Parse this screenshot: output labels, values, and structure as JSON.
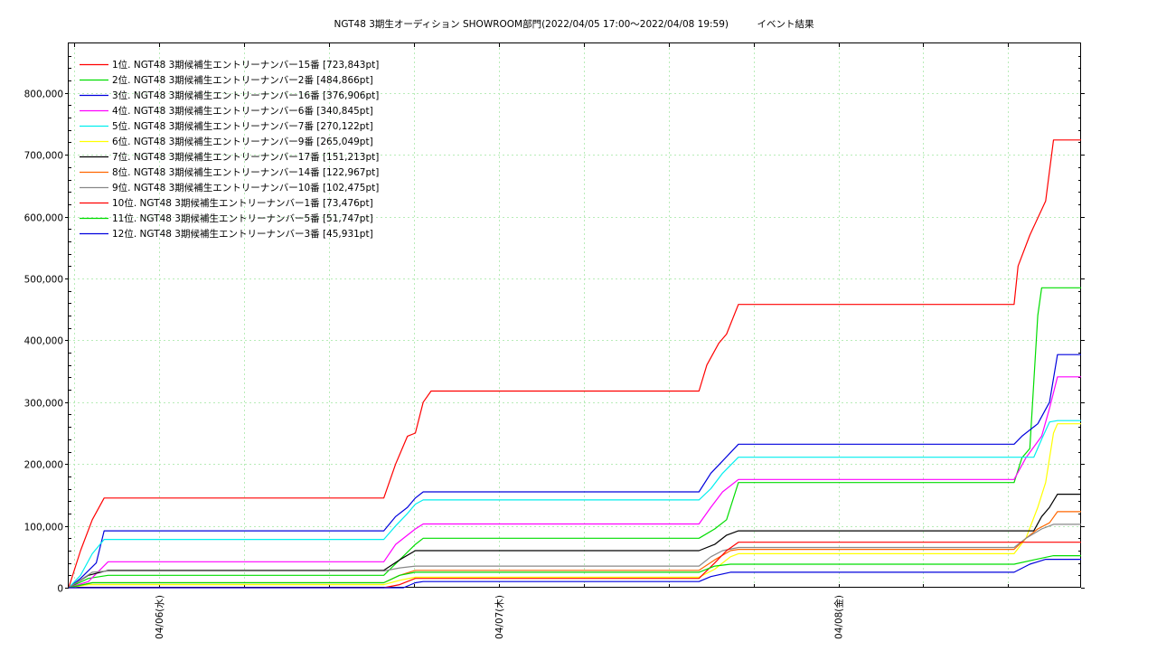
{
  "chart_data": {
    "type": "line",
    "title": "NGT48 3期生オーディション SHOWROOM部門(2022/04/05 17:00～2022/04/08 19:59)　　　イベント結果",
    "x_tick_labels": [
      "04/06(水)",
      "04/07(木)",
      "04/08(金)"
    ],
    "x_range": [
      "2022/04/05 17:00",
      "2022/04/08 19:59"
    ],
    "ylim": [
      0,
      880000
    ],
    "y_ticks": [
      0,
      100000,
      200000,
      300000,
      400000,
      500000,
      600000,
      700000,
      800000
    ],
    "y_tick_labels": [
      "0",
      "100,000",
      "200,000",
      "300,000",
      "400,000",
      "500,000",
      "600,000",
      "700,000",
      "800,000"
    ],
    "grid": true,
    "legend_position": "top-left",
    "series": [
      {
        "name": " 1位. NGT48 3期候補生エントリーナンバー15番 [723,843pt]",
        "color": "#ff0000",
        "points": [
          [
            0,
            0
          ],
          [
            3,
            60000
          ],
          [
            6,
            110000
          ],
          [
            9,
            145000
          ],
          [
            80,
            145000
          ],
          [
            83,
            200000
          ],
          [
            86,
            245000
          ],
          [
            88,
            250000
          ],
          [
            90,
            300000
          ],
          [
            92,
            318000
          ],
          [
            160,
            318000
          ],
          [
            162,
            360000
          ],
          [
            165,
            395000
          ],
          [
            167,
            410000
          ],
          [
            170,
            458000
          ],
          [
            240,
            458000
          ],
          [
            241,
            520000
          ],
          [
            244,
            570000
          ],
          [
            248,
            625000
          ],
          [
            250,
            723843
          ],
          [
            257,
            723843
          ]
        ]
      },
      {
        "name": " 2位. NGT48 3期候補生エントリーナンバー2番 [484,866pt]",
        "color": "#00dd00",
        "points": [
          [
            0,
            0
          ],
          [
            5,
            15000
          ],
          [
            10,
            20000
          ],
          [
            80,
            20000
          ],
          [
            84,
            45000
          ],
          [
            88,
            70000
          ],
          [
            90,
            80000
          ],
          [
            160,
            80000
          ],
          [
            164,
            95000
          ],
          [
            167,
            110000
          ],
          [
            170,
            170000
          ],
          [
            240,
            170000
          ],
          [
            242,
            210000
          ],
          [
            244,
            225000
          ],
          [
            246,
            440000
          ],
          [
            247,
            484866
          ],
          [
            257,
            484866
          ]
        ]
      },
      {
        "name": " 3位. NGT48 3期候補生エントリーナンバー16番 [376,906pt]",
        "color": "#0000dd",
        "points": [
          [
            0,
            0
          ],
          [
            3,
            15000
          ],
          [
            7,
            40000
          ],
          [
            9,
            92000
          ],
          [
            80,
            92000
          ],
          [
            83,
            115000
          ],
          [
            86,
            130000
          ],
          [
            88,
            145000
          ],
          [
            90,
            155000
          ],
          [
            160,
            155000
          ],
          [
            163,
            185000
          ],
          [
            166,
            205000
          ],
          [
            170,
            232000
          ],
          [
            240,
            232000
          ],
          [
            242,
            245000
          ],
          [
            246,
            265000
          ],
          [
            249,
            300000
          ],
          [
            251,
            376906
          ],
          [
            257,
            376906
          ]
        ]
      },
      {
        "name": " 4位. NGT48 3期候補生エントリーナンバー6番 [340,845pt]",
        "color": "#ff00ff",
        "points": [
          [
            0,
            0
          ],
          [
            5,
            10000
          ],
          [
            10,
            42000
          ],
          [
            80,
            42000
          ],
          [
            83,
            70000
          ],
          [
            88,
            95000
          ],
          [
            90,
            103000
          ],
          [
            160,
            103000
          ],
          [
            163,
            130000
          ],
          [
            166,
            155000
          ],
          [
            170,
            175000
          ],
          [
            240,
            175000
          ],
          [
            243,
            210000
          ],
          [
            247,
            245000
          ],
          [
            249,
            290000
          ],
          [
            251,
            340845
          ],
          [
            257,
            340845
          ]
        ]
      },
      {
        "name": " 5位. NGT48 3期候補生エントリーナンバー7番 [270,122pt]",
        "color": "#00eeee",
        "points": [
          [
            0,
            0
          ],
          [
            3,
            20000
          ],
          [
            6,
            55000
          ],
          [
            9,
            78000
          ],
          [
            80,
            78000
          ],
          [
            83,
            100000
          ],
          [
            86,
            120000
          ],
          [
            88,
            135000
          ],
          [
            90,
            142000
          ],
          [
            160,
            142000
          ],
          [
            163,
            160000
          ],
          [
            166,
            185000
          ],
          [
            170,
            211000
          ],
          [
            240,
            211000
          ],
          [
            245,
            211000
          ],
          [
            247,
            240000
          ],
          [
            249,
            268000
          ],
          [
            251,
            270122
          ],
          [
            257,
            270122
          ]
        ]
      },
      {
        "name": " 6位. NGT48 3期候補生エントリーナンバー9番 [265,049pt]",
        "color": "#ffff00",
        "points": [
          [
            0,
            0
          ],
          [
            5,
            5000
          ],
          [
            80,
            5000
          ],
          [
            84,
            12000
          ],
          [
            88,
            17000
          ],
          [
            160,
            17000
          ],
          [
            164,
            30000
          ],
          [
            168,
            50000
          ],
          [
            170,
            55000
          ],
          [
            240,
            55000
          ],
          [
            243,
            80000
          ],
          [
            246,
            130000
          ],
          [
            248,
            170000
          ],
          [
            250,
            250000
          ],
          [
            251,
            265049
          ],
          [
            257,
            265049
          ]
        ]
      },
      {
        "name": " 7位. NGT48 3期候補生エントリーナンバー17番 [151,213pt]",
        "color": "#000000",
        "points": [
          [
            0,
            0
          ],
          [
            5,
            20000
          ],
          [
            10,
            28000
          ],
          [
            80,
            28000
          ],
          [
            84,
            45000
          ],
          [
            88,
            60000
          ],
          [
            160,
            60000
          ],
          [
            164,
            70000
          ],
          [
            167,
            85000
          ],
          [
            170,
            92000
          ],
          [
            240,
            92000
          ],
          [
            245,
            92000
          ],
          [
            247,
            115000
          ],
          [
            249,
            130000
          ],
          [
            251,
            151213
          ],
          [
            257,
            151213
          ]
        ]
      },
      {
        "name": " 8位. NGT48 3期候補生エントリーナンバー14番 [122,967pt]",
        "color": "#ff6600",
        "points": [
          [
            0,
            0
          ],
          [
            6,
            8000
          ],
          [
            80,
            8000
          ],
          [
            84,
            20000
          ],
          [
            88,
            28000
          ],
          [
            160,
            28000
          ],
          [
            164,
            45000
          ],
          [
            168,
            60000
          ],
          [
            170,
            62000
          ],
          [
            240,
            62000
          ],
          [
            243,
            80000
          ],
          [
            246,
            95000
          ],
          [
            249,
            105000
          ],
          [
            251,
            122967
          ],
          [
            257,
            122967
          ]
        ]
      },
      {
        "name": " 9位. NGT48 3期候補生エントリーナンバー10番 [102,475pt]",
        "color": "#888888",
        "points": [
          [
            0,
            0
          ],
          [
            6,
            25000
          ],
          [
            10,
            27000
          ],
          [
            80,
            27000
          ],
          [
            84,
            32000
          ],
          [
            88,
            35000
          ],
          [
            160,
            35000
          ],
          [
            163,
            50000
          ],
          [
            166,
            60000
          ],
          [
            170,
            65000
          ],
          [
            240,
            65000
          ],
          [
            243,
            80000
          ],
          [
            247,
            95000
          ],
          [
            250,
            102475
          ],
          [
            257,
            102475
          ]
        ]
      },
      {
        "name": "10位. NGT48 3期候補生エントリーナンバー1番 [73,476pt]",
        "color": "#ff0000",
        "points": [
          [
            0,
            0
          ],
          [
            80,
            0
          ],
          [
            84,
            5000
          ],
          [
            88,
            15000
          ],
          [
            160,
            15000
          ],
          [
            164,
            40000
          ],
          [
            167,
            60000
          ],
          [
            170,
            73476
          ],
          [
            257,
            73476
          ]
        ]
      },
      {
        "name": "11位. NGT48 3期候補生エントリーナンバー5番 [51,747pt]",
        "color": "#00dd00",
        "points": [
          [
            0,
            0
          ],
          [
            6,
            8000
          ],
          [
            80,
            8000
          ],
          [
            84,
            20000
          ],
          [
            88,
            25000
          ],
          [
            160,
            25000
          ],
          [
            164,
            35000
          ],
          [
            168,
            38000
          ],
          [
            240,
            38000
          ],
          [
            245,
            45000
          ],
          [
            250,
            51747
          ],
          [
            257,
            51747
          ]
        ]
      },
      {
        "name": "12位. NGT48 3期候補生エントリーナンバー3番 [45,931pt]",
        "color": "#0000dd",
        "points": [
          [
            0,
            0
          ],
          [
            85,
            0
          ],
          [
            88,
            8000
          ],
          [
            90,
            10000
          ],
          [
            160,
            10000
          ],
          [
            163,
            18000
          ],
          [
            168,
            25000
          ],
          [
            240,
            25000
          ],
          [
            244,
            38000
          ],
          [
            248,
            45931
          ],
          [
            257,
            45931
          ]
        ]
      }
    ]
  }
}
